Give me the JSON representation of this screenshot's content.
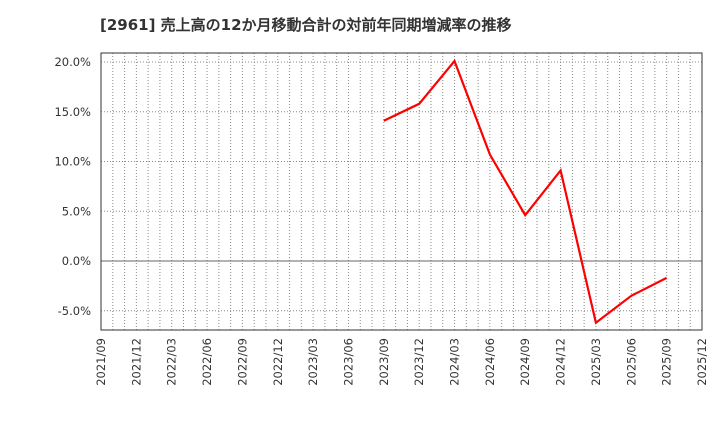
{
  "title": "[2961]  売上高の12か月移動合計の対前年同期増減率の推移",
  "colors": {
    "line": "#ff0000",
    "grid": "#888888",
    "axis": "#333333",
    "zero": "#666666"
  },
  "chart_data": {
    "type": "line",
    "title": "[2961]  売上高の12か月移動合計の対前年同期増減率の推移",
    "xlabel": "",
    "ylabel": "",
    "ylim": [
      -7.0,
      21.0
    ],
    "grid": true,
    "legend": null,
    "yticks": [
      20.0,
      15.0,
      10.0,
      5.0,
      0.0,
      -5.0
    ],
    "ytick_labels": [
      "20.0%",
      "15.0%",
      "10.0%",
      "5.0%",
      "0.0%",
      "-5.0%"
    ],
    "xtick_labels": [
      "2021/09",
      "2021/12",
      "2022/03",
      "2022/06",
      "2022/09",
      "2022/12",
      "2023/03",
      "2023/06",
      "2023/09",
      "2023/12",
      "2024/03",
      "2024/06",
      "2024/09",
      "2024/12",
      "2025/03",
      "2025/06",
      "2025/09",
      "2025/12"
    ],
    "series": [
      {
        "name": "対前年同期増減率",
        "color": "#ff0000",
        "x": [
          "2023/09",
          "2023/12",
          "2024/03",
          "2024/06",
          "2024/09",
          "2024/12",
          "2025/03",
          "2025/06",
          "2025/09"
        ],
        "values": [
          14.1,
          15.8,
          20.1,
          10.7,
          4.6,
          9.1,
          -6.2,
          -3.5,
          -1.7
        ]
      }
    ]
  }
}
